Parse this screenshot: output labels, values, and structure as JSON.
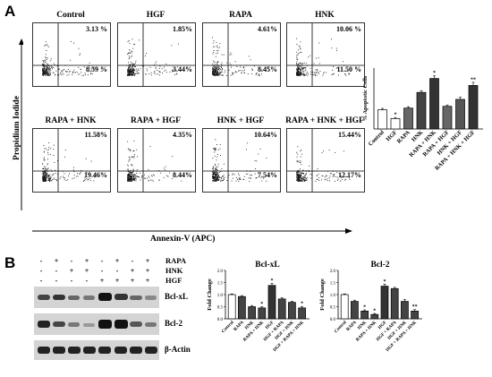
{
  "panel_a": {
    "letter": "A",
    "y_axis_label": "Propidium Iodide",
    "x_axis_label": "Annexin-V (APC)",
    "plots": [
      {
        "title": "Control",
        "upper_right": "3.13 %",
        "lower_right": "8.39 %"
      },
      {
        "title": "HGF",
        "upper_right": "1.85%",
        "lower_right": "3.44%"
      },
      {
        "title": "RAPA",
        "upper_right": "4.61%",
        "lower_right": "8.45%"
      },
      {
        "title": "HNK",
        "upper_right": "10.06 %",
        "lower_right": "11.50 %"
      },
      {
        "title": "RAPA + HNK",
        "upper_right": "11.58%",
        "lower_right": "19.46%"
      },
      {
        "title": "RAPA + HGF",
        "upper_right": "4.35%",
        "lower_right": "8.44%"
      },
      {
        "title": "HNK + HGF",
        "upper_right": "10.64%",
        "lower_right": "7.54%"
      },
      {
        "title": "RAPA + HNK + HGF",
        "upper_right": "15.44%",
        "lower_right": "12.17%"
      }
    ]
  },
  "panel_b": {
    "letter": "B",
    "treatment_rows": [
      {
        "label": "RAPA",
        "signs": [
          "-",
          "+",
          "-",
          "+",
          "-",
          "+",
          "-",
          "+"
        ]
      },
      {
        "label": "HNK",
        "signs": [
          "-",
          "-",
          "+",
          "+",
          "-",
          "-",
          "+",
          "+"
        ]
      },
      {
        "label": "HGF",
        "signs": [
          "-",
          "-",
          "-",
          "-",
          "+",
          "+",
          "+",
          "+"
        ]
      }
    ],
    "blot_labels": [
      "Bcl-xL",
      "Bcl-2",
      "β-Actin"
    ]
  },
  "chart_data": [
    {
      "type": "bar",
      "title": "",
      "ylabel": "% Apoptotic Cells",
      "xlabel": "",
      "categories": [
        "Control",
        "HGF",
        "RAPA",
        "HNK",
        "RAPA + HNK",
        "RAPA + HGF",
        "HNK + HGF",
        "RAPA + HNK + HGF"
      ],
      "values": [
        11,
        6,
        12,
        21,
        29,
        13,
        17,
        25
      ],
      "errors": [
        0.8,
        0.6,
        0.8,
        1.0,
        1.5,
        0.8,
        1.2,
        1.8
      ],
      "annotations": [
        "",
        "*",
        "",
        "",
        "*",
        "",
        "",
        "**"
      ],
      "colors": [
        "#ffffff",
        "#ffffff",
        "#666666",
        "#444444",
        "#333333",
        "#666666",
        "#555555",
        "#333333"
      ],
      "ylim": [
        0,
        35
      ],
      "yticks": [],
      "grid": false
    },
    {
      "type": "bar",
      "title": "Bcl-xL",
      "ylabel": "Fold Change",
      "xlabel": "",
      "categories": [
        "Control",
        "RAPA",
        "HNK",
        "RAPA + HNK",
        "HGF",
        "HGF + RAPA",
        "HGF + HNK",
        "HGF + RAPA + HNK"
      ],
      "values": [
        1.0,
        0.92,
        0.5,
        0.45,
        1.38,
        0.82,
        0.68,
        0.45
      ],
      "errors": [
        0.03,
        0.04,
        0.05,
        0.05,
        0.08,
        0.05,
        0.05,
        0.06
      ],
      "annotations": [
        "",
        "",
        "",
        "*",
        "*",
        "",
        "",
        "*"
      ],
      "colors": [
        "#ffffff",
        "#444444",
        "#444444",
        "#444444",
        "#333333",
        "#444444",
        "#444444",
        "#444444"
      ],
      "ylim": [
        0,
        2.0
      ],
      "yticks": [
        0.0,
        0.5,
        1.0,
        1.5,
        2.0
      ],
      "grid": false
    },
    {
      "type": "bar",
      "title": "Bcl-2",
      "ylabel": "Fold Change",
      "xlabel": "",
      "categories": [
        "Control",
        "RAPA",
        "HNK",
        "RAPA + HNK",
        "HGF",
        "HGF + RAPA",
        "HGF + HNK",
        "HGF + RAPA + HNK"
      ],
      "values": [
        1.0,
        0.72,
        0.32,
        0.18,
        1.35,
        1.25,
        0.72,
        0.32
      ],
      "errors": [
        0.03,
        0.05,
        0.05,
        0.04,
        0.08,
        0.05,
        0.08,
        0.06
      ],
      "annotations": [
        "",
        "",
        "*",
        "*",
        "*",
        "",
        "",
        "**"
      ],
      "colors": [
        "#ffffff",
        "#444444",
        "#444444",
        "#444444",
        "#333333",
        "#444444",
        "#444444",
        "#444444"
      ],
      "ylim": [
        0,
        2.0
      ],
      "yticks": [
        0.0,
        0.5,
        1.0,
        1.5,
        2.0
      ],
      "grid": false
    }
  ]
}
